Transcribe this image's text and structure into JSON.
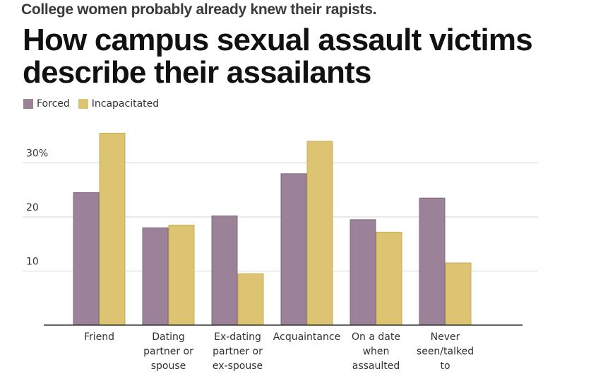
{
  "kicker": "College women probably already knew their rapists.",
  "title": "How campus sexual assault victims describe their assailants",
  "colors": {
    "forced": "#9b8299",
    "incapacitated": "#dcc472",
    "grid": "#d6d6d6",
    "axis": "#333333"
  },
  "chart_data": {
    "type": "bar",
    "categories": [
      [
        "Friend"
      ],
      [
        "Dating",
        "partner or",
        "spouse"
      ],
      [
        "Ex-dating",
        "partner or",
        "ex-spouse"
      ],
      [
        "Acquaintance"
      ],
      [
        "On a date",
        "when",
        "assaulted"
      ],
      [
        "Never",
        "seen/talked",
        "to"
      ]
    ],
    "series": [
      {
        "name": "Forced",
        "values": [
          24.5,
          18.0,
          20.2,
          28.0,
          19.5,
          23.5
        ]
      },
      {
        "name": "Incapacitated",
        "values": [
          35.5,
          18.5,
          9.5,
          34.0,
          17.2,
          11.5
        ]
      }
    ],
    "yticks": [
      {
        "value": 10,
        "label": "10"
      },
      {
        "value": 20,
        "label": "20"
      },
      {
        "value": 30,
        "label": "30%"
      }
    ],
    "ylim": [
      0,
      36
    ],
    "grid": true,
    "legend_position": "top-left"
  }
}
